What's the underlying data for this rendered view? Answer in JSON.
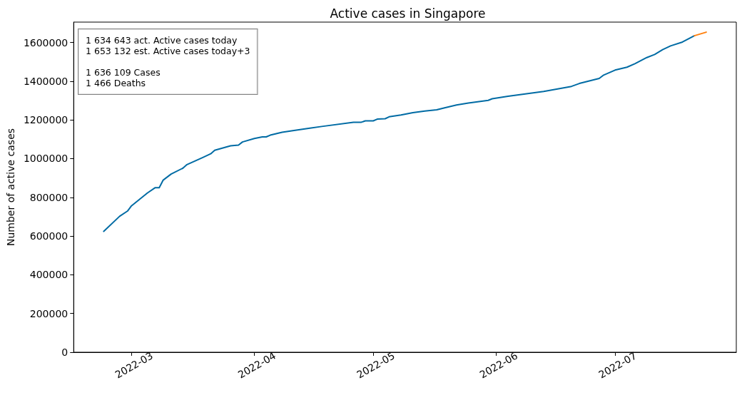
{
  "chart_data": {
    "type": "line",
    "title": "Active cases in Singapore",
    "ylabel": "Number of active cases",
    "annotations": [
      "1 634 643 act. Active cases today\n1 653 132 est. Active cases today+3",
      "1 636 109 Cases\n1 466 Deaths"
    ],
    "series": [
      {
        "color": "#006ba4",
        "x": [
          "2022-02-22",
          "2022-02-26",
          "2022-02-28",
          "2022-03-01",
          "2022-03-05",
          "2022-03-07",
          "2022-03-08",
          "2022-03-09",
          "2022-03-11",
          "2022-03-14",
          "2022-03-15",
          "2022-03-19",
          "2022-03-21",
          "2022-03-22",
          "2022-03-26",
          "2022-03-28",
          "2022-03-29",
          "2022-04-01",
          "2022-04-03",
          "2022-04-04",
          "2022-04-05",
          "2022-04-08",
          "2022-04-11",
          "2022-04-15",
          "2022-04-18",
          "2022-04-26",
          "2022-04-28",
          "2022-04-29",
          "2022-05-01",
          "2022-05-02",
          "2022-05-04",
          "2022-05-05",
          "2022-05-08",
          "2022-05-11",
          "2022-05-14",
          "2022-05-17",
          "2022-05-19",
          "2022-05-22",
          "2022-05-25",
          "2022-05-30",
          "2022-05-31",
          "2022-06-04",
          "2022-06-07",
          "2022-06-13",
          "2022-06-20",
          "2022-06-22",
          "2022-06-27",
          "2022-06-28",
          "2022-07-01",
          "2022-07-04",
          "2022-07-06",
          "2022-07-09",
          "2022-07-11",
          "2022-07-13",
          "2022-07-15",
          "2022-07-18",
          "2022-07-21"
        ],
        "values": [
          624000,
          702000,
          729000,
          756000,
          822000,
          850000,
          850000,
          889000,
          920000,
          951000,
          969000,
          1006000,
          1025000,
          1043000,
          1066000,
          1070000,
          1086000,
          1104000,
          1112000,
          1112000,
          1121000,
          1136000,
          1145000,
          1157000,
          1166000,
          1188000,
          1188000,
          1195000,
          1195000,
          1204000,
          1206000,
          1216000,
          1225000,
          1237000,
          1246000,
          1252000,
          1262000,
          1277000,
          1287000,
          1301000,
          1309000,
          1322000,
          1330000,
          1347000,
          1373000,
          1388000,
          1414000,
          1430000,
          1457000,
          1472000,
          1490000,
          1522000,
          1538000,
          1563000,
          1582000,
          1602000,
          1634643
        ]
      },
      {
        "color": "#ff800e",
        "x": [
          "2022-07-21",
          "2022-07-24"
        ],
        "values": [
          1634643,
          1653132
        ]
      }
    ],
    "xlim": [
      "2022-02-14T10:00",
      "2022-07-31T14:00"
    ],
    "xticks": [
      {
        "value": "2022-03-01",
        "label": "2022-03"
      },
      {
        "value": "2022-04-01",
        "label": "2022-04"
      },
      {
        "value": "2022-05-01",
        "label": "2022-05"
      },
      {
        "value": "2022-06-01",
        "label": "2022-06"
      },
      {
        "value": "2022-07-01",
        "label": "2022-07"
      }
    ],
    "ylim": [
      0,
      1705000
    ],
    "yticks": [
      0,
      200000,
      400000,
      600000,
      800000,
      1000000,
      1200000,
      1400000,
      1600000
    ],
    "marker": "none"
  }
}
